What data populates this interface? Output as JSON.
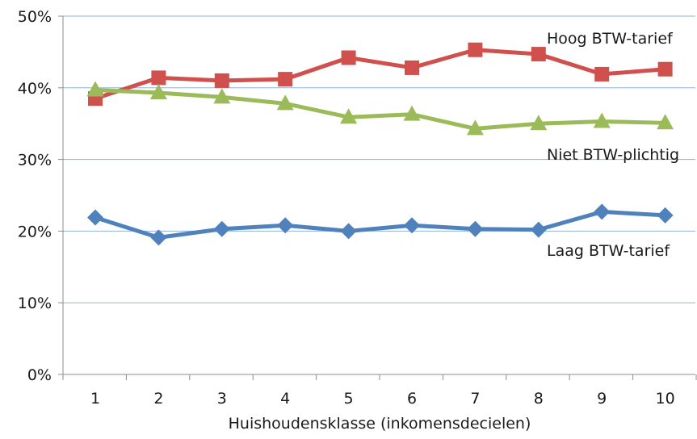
{
  "chart_data": {
    "type": "line",
    "title": "",
    "xlabel": "Huishoudensklasse (inkomensdecielen)",
    "ylabel": "",
    "categories": [
      "1",
      "2",
      "3",
      "4",
      "5",
      "6",
      "7",
      "8",
      "9",
      "10"
    ],
    "ylim": [
      0,
      50
    ],
    "yticks": [
      0,
      10,
      20,
      30,
      40,
      50
    ],
    "ytick_labels": [
      "0%",
      "10%",
      "20%",
      "30%",
      "40%",
      "50%"
    ],
    "grid": "horizontal",
    "legend": "direct labels",
    "series": [
      {
        "name": "Hoog BTW-tarief",
        "color": "#d0504d",
        "marker": "square",
        "values": [
          38.5,
          41.4,
          41.0,
          41.2,
          44.2,
          42.8,
          45.3,
          44.7,
          41.9,
          42.6
        ]
      },
      {
        "name": "Niet BTW-plichtig",
        "color": "#9bbb59",
        "marker": "triangle",
        "values": [
          39.7,
          39.3,
          38.7,
          37.8,
          35.9,
          36.3,
          34.3,
          35.0,
          35.3,
          35.1
        ]
      },
      {
        "name": "Laag BTW-tarief",
        "color": "#4f81bd",
        "marker": "diamond",
        "values": [
          21.9,
          19.1,
          20.3,
          20.8,
          20.0,
          20.8,
          20.3,
          20.2,
          22.7,
          22.2
        ]
      }
    ]
  }
}
